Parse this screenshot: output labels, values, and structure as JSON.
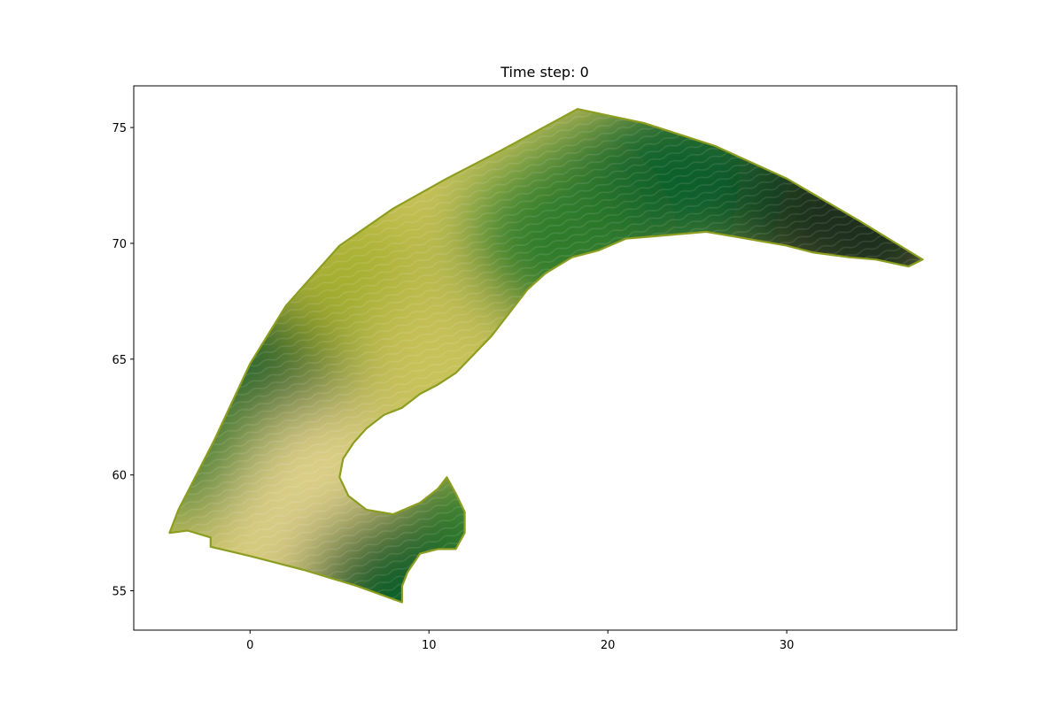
{
  "chart_data": {
    "type": "heatmap",
    "title": "Time step: 0",
    "xlabel": "",
    "ylabel": "",
    "xlim": [
      -6.5,
      39.5
    ],
    "ylim": [
      53.3,
      76.8
    ],
    "x_ticks": [
      0,
      10,
      20,
      30
    ],
    "y_ticks": [
      55,
      60,
      65,
      70,
      75
    ],
    "x_tick_labels": [
      "0",
      "10",
      "20",
      "30"
    ],
    "y_tick_labels": [
      "55",
      "60",
      "65",
      "70",
      "75"
    ],
    "grid": false,
    "colorbar": false,
    "colormap": [
      "#e2d38c",
      "#c8c25a",
      "#a3ad2c",
      "#6f9821",
      "#2f7c2a",
      "#0f5f2c",
      "#1d2f1c"
    ],
    "domain_outline": [
      [
        18.3,
        75.8
      ],
      [
        22,
        75.2
      ],
      [
        26,
        74.2
      ],
      [
        30,
        72.8
      ],
      [
        34,
        71.0
      ],
      [
        37.6,
        69.3
      ],
      [
        36.8,
        69.0
      ],
      [
        35,
        69.3
      ],
      [
        33.5,
        69.4
      ],
      [
        31.5,
        69.6
      ],
      [
        30,
        69.9
      ],
      [
        28.5,
        70.1
      ],
      [
        27,
        70.3
      ],
      [
        25.5,
        70.5
      ],
      [
        24,
        70.4
      ],
      [
        22.5,
        70.3
      ],
      [
        21,
        70.2
      ],
      [
        19.5,
        69.7
      ],
      [
        18,
        69.4
      ],
      [
        16.5,
        68.7
      ],
      [
        15.5,
        68.0
      ],
      [
        14.5,
        67.0
      ],
      [
        13.5,
        66.0
      ],
      [
        12.5,
        65.2
      ],
      [
        11.5,
        64.4
      ],
      [
        10.5,
        63.9
      ],
      [
        9.5,
        63.5
      ],
      [
        8.5,
        62.9
      ],
      [
        7.5,
        62.6
      ],
      [
        6.5,
        62.0
      ],
      [
        5.8,
        61.4
      ],
      [
        5.2,
        60.7
      ],
      [
        5.0,
        59.9
      ],
      [
        5.5,
        59.1
      ],
      [
        6.5,
        58.5
      ],
      [
        8,
        58.3
      ],
      [
        9.5,
        58.8
      ],
      [
        10.5,
        59.4
      ],
      [
        11.0,
        59.9
      ],
      [
        11.5,
        59.2
      ],
      [
        12,
        58.4
      ],
      [
        12,
        57.5
      ],
      [
        11.5,
        56.8
      ],
      [
        10.5,
        56.8
      ],
      [
        9.5,
        56.6
      ],
      [
        8.8,
        55.8
      ],
      [
        8.5,
        55.2
      ],
      [
        8.5,
        54.5
      ],
      [
        6,
        55.2
      ],
      [
        3,
        55.9
      ],
      [
        0,
        56.5
      ],
      [
        -2.2,
        56.9
      ],
      [
        -2.2,
        57.3
      ],
      [
        -3.5,
        57.6
      ],
      [
        -4.5,
        57.5
      ],
      [
        -4,
        58.5
      ],
      [
        -2,
        61.5
      ],
      [
        0,
        64.8
      ],
      [
        2,
        67.3
      ],
      [
        5,
        69.9
      ],
      [
        8,
        71.5
      ],
      [
        11,
        72.8
      ],
      [
        14,
        74.0
      ],
      [
        18.3,
        75.8
      ]
    ],
    "field_samples": [
      {
        "lon": 30,
        "lat": 72,
        "value": 6
      },
      {
        "lon": 35,
        "lat": 70.2,
        "value": 6
      },
      {
        "lon": 24,
        "lat": 73,
        "value": 5
      },
      {
        "lon": 20,
        "lat": 71.5,
        "value": 4.5
      },
      {
        "lon": 17,
        "lat": 70,
        "value": 4
      },
      {
        "lon": 1,
        "lat": 64.2,
        "value": 4.5
      },
      {
        "lon": -2,
        "lat": 60.5,
        "value": 3.5
      },
      {
        "lon": 6,
        "lat": 68,
        "value": 1.5
      },
      {
        "lon": 4,
        "lat": 60,
        "value": 0.3
      },
      {
        "lon": 2,
        "lat": 57.5,
        "value": 0.4
      },
      {
        "lon": 10,
        "lat": 65,
        "value": 1.2
      },
      {
        "lon": 11.5,
        "lat": 57.6,
        "value": 3.5
      },
      {
        "lon": 7.5,
        "lat": 55,
        "value": 5
      }
    ]
  }
}
